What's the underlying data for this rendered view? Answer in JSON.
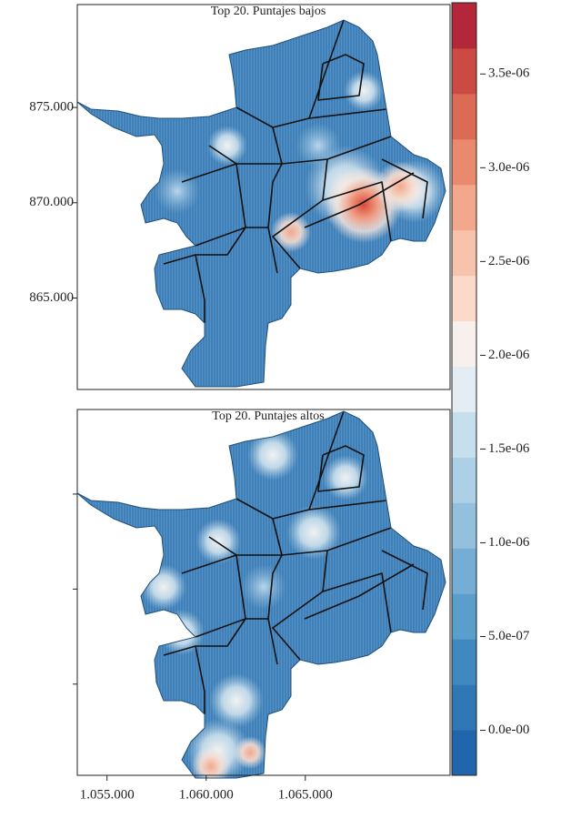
{
  "chart_data": [
    {
      "type": "map",
      "title": "Top 20. Puntajes bajos",
      "xlim": [
        1053500,
        1072300
      ],
      "ylim": [
        860200,
        880400
      ],
      "yticks": [
        {
          "value": 865000,
          "label": "865.000"
        },
        {
          "value": 870000,
          "label": "870.000"
        },
        {
          "value": 875000,
          "label": "875.000"
        }
      ]
    },
    {
      "type": "map",
      "title": "Top 20. Puntajes altos",
      "xlim": [
        1053500,
        1072300
      ],
      "ylim": [
        860200,
        879450
      ],
      "yticks": [
        865000,
        870000,
        875000
      ],
      "ytick_labels": false,
      "xticks": [
        {
          "value": 1055000,
          "label": "1.055.000"
        },
        {
          "value": 1060000,
          "label": "1.060.000"
        },
        {
          "value": 1065000,
          "label": "1.065.000"
        }
      ]
    },
    {
      "type": "colorbar",
      "ylim": [
        -2.4e-07,
        3.88e-06
      ],
      "yticks": [
        {
          "value": 0,
          "label": "0.0e-00"
        },
        {
          "value": 5e-07,
          "label": "5.0e-07"
        },
        {
          "value": 1e-06,
          "label": "1.0e-06"
        },
        {
          "value": 1.5e-06,
          "label": "1.5e-06"
        },
        {
          "value": 2e-06,
          "label": "2.0e-06"
        },
        {
          "value": 2.5e-06,
          "label": "2.5e-06"
        },
        {
          "value": 3e-06,
          "label": "3.0e-06"
        },
        {
          "value": 3.5e-06,
          "label": "3.5e-06"
        }
      ],
      "colors": [
        "#2166ac",
        "#2f78b5",
        "#3f88c0",
        "#5a9ecb",
        "#75aed4",
        "#92c0dd",
        "#acd0e5",
        "#c5dfec",
        "#e3edf3",
        "#f7f0ec",
        "#fbdacb",
        "#f8c3ab",
        "#f3a88b",
        "#e98a6f",
        "#dc6b55",
        "#cb4a42",
        "#b4263a"
      ]
    }
  ]
}
